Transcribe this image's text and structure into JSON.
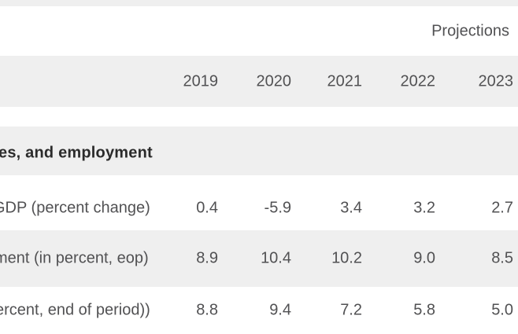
{
  "colors": {
    "row_stripe": "#efefef",
    "background": "#ffffff",
    "text": "#515153",
    "section_text": "#2b2b2b"
  },
  "table": {
    "projections_label": "Projections",
    "years": [
      "2019",
      "2020",
      "2021",
      "2022",
      "2023"
    ],
    "section_title": "es, and employment",
    "rows": [
      {
        "label": "GDP (percent change)",
        "values": [
          "0.4",
          "-5.9",
          "3.4",
          "3.2",
          "2.7"
        ]
      },
      {
        "label": "ment (in percent, eop)",
        "values": [
          "8.9",
          "10.4",
          "10.2",
          "9.0",
          "8.5"
        ]
      },
      {
        "label": "ercent, end of period))",
        "values": [
          "8.8",
          "9.4",
          "7.2",
          "5.8",
          "5.0"
        ]
      }
    ]
  },
  "chart_data": {
    "type": "table",
    "title": "Projections",
    "columns": [
      "2019",
      "2020",
      "2021",
      "2022",
      "2023"
    ],
    "section_header": "es, and employment",
    "rows": [
      {
        "label": "GDP (percent change)",
        "values": [
          0.4,
          -5.9,
          3.4,
          3.2,
          2.7
        ]
      },
      {
        "label": "ment (in percent, eop)",
        "values": [
          8.9,
          10.4,
          10.2,
          9.0,
          8.5
        ]
      },
      {
        "label": "ercent, end of period))",
        "values": [
          8.8,
          9.4,
          7.2,
          5.8,
          5.0
        ]
      }
    ],
    "layout": {
      "row_striping": "alternating white and light gray bands",
      "value_alignment": "right",
      "projections_label_position": "top-right",
      "left_edge_cropped": true
    }
  }
}
